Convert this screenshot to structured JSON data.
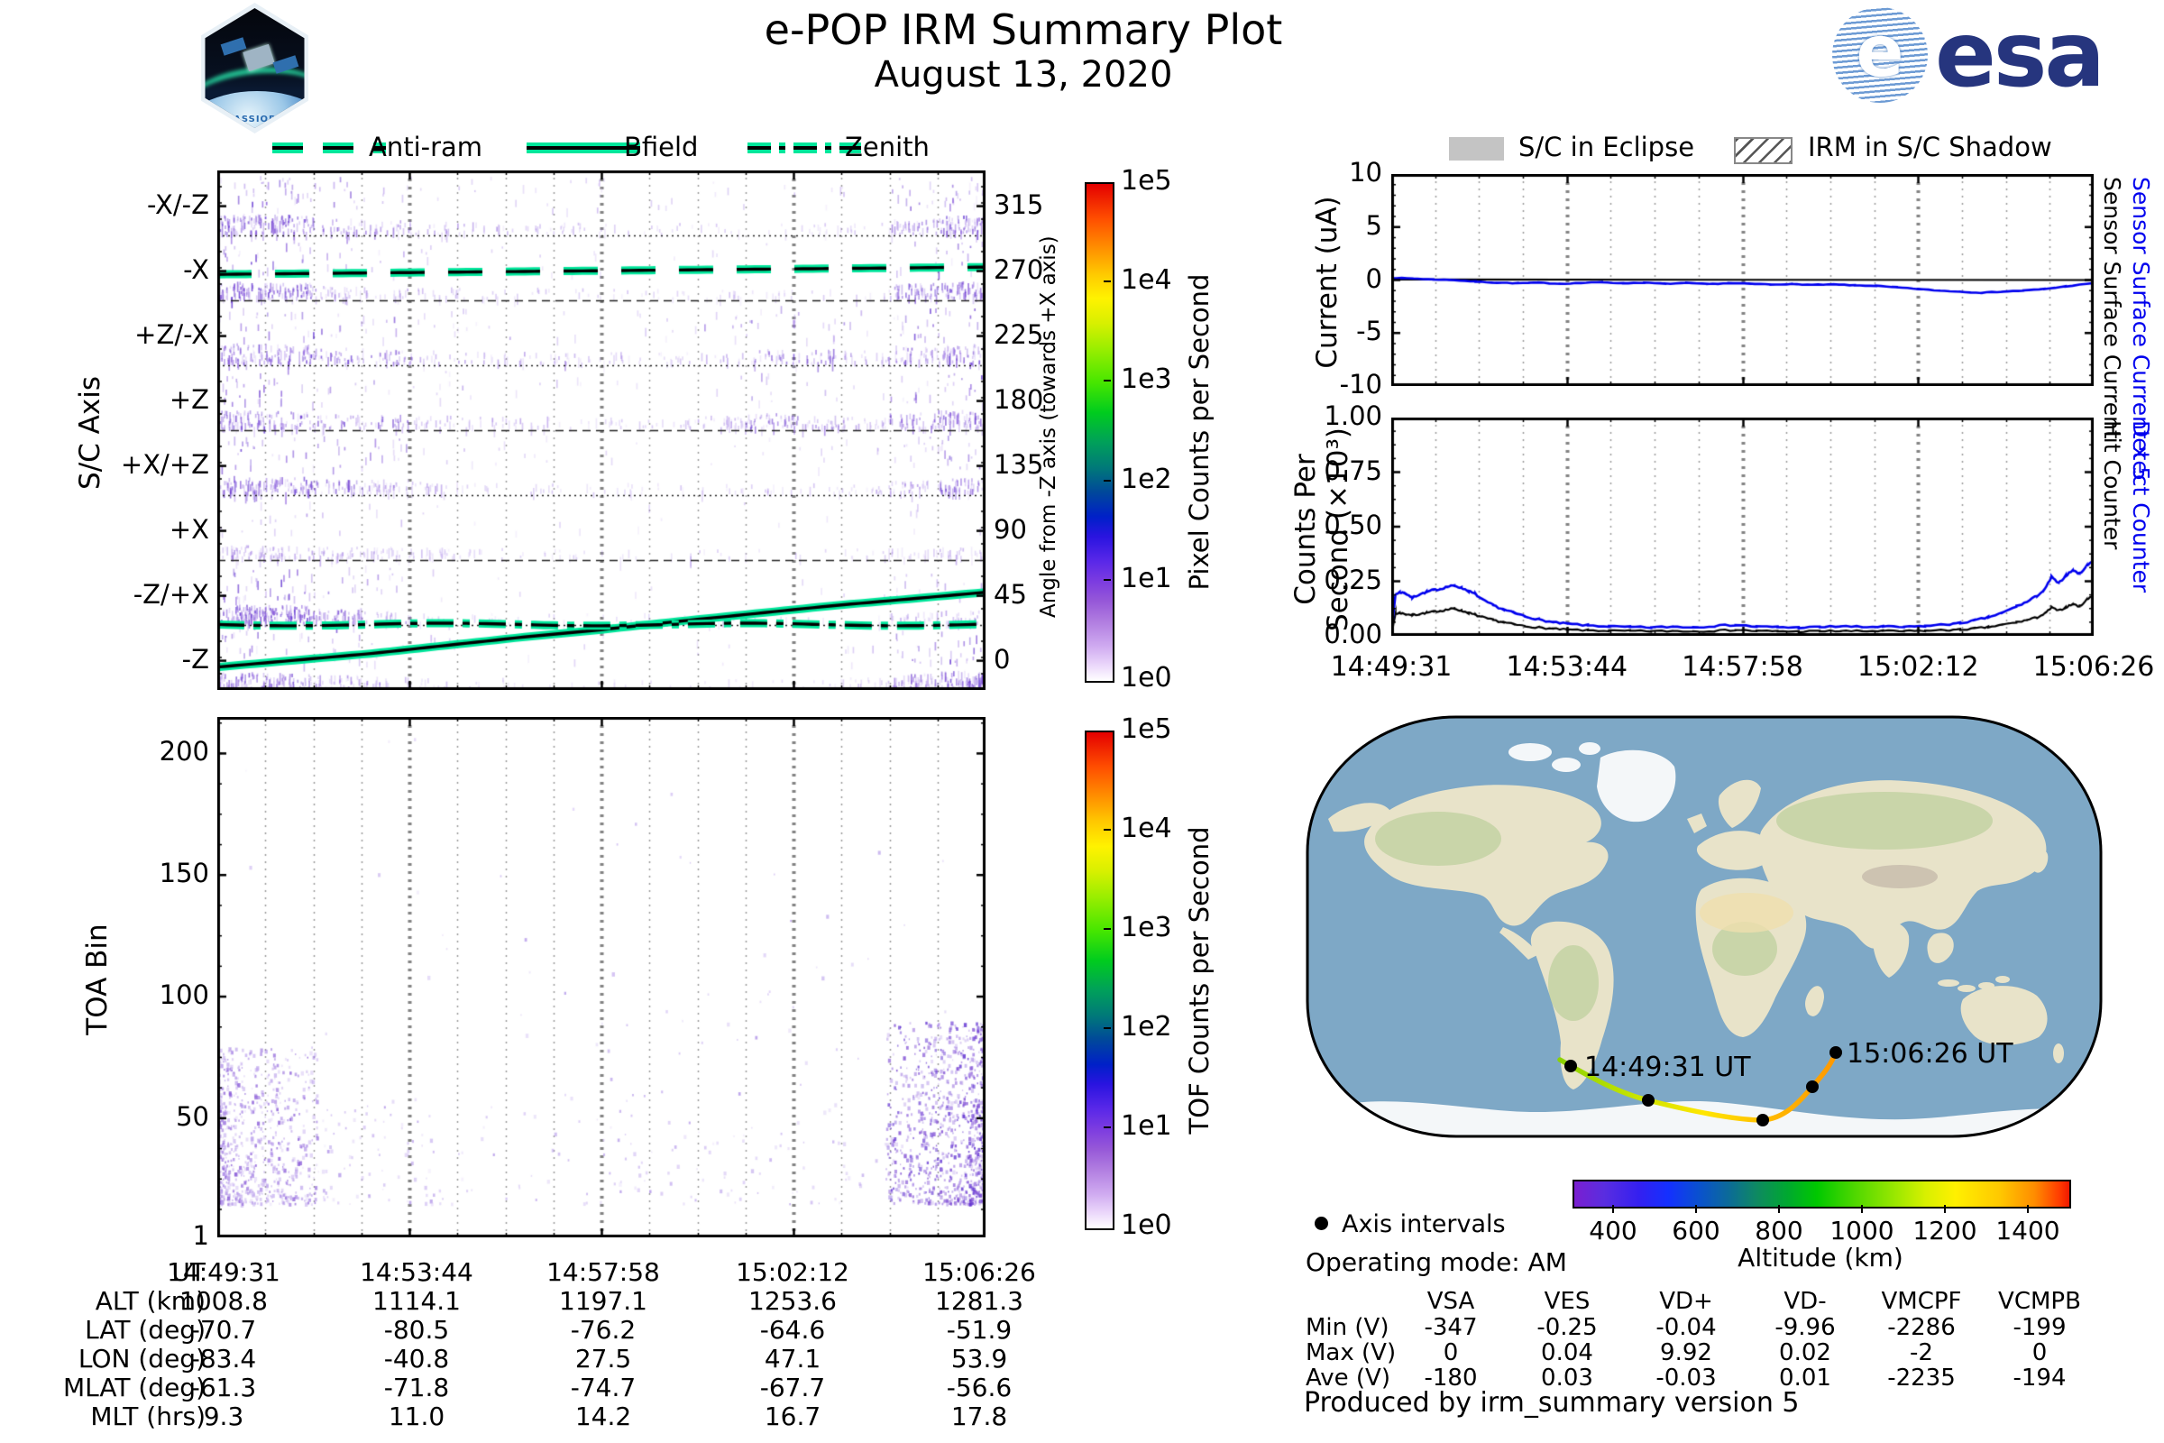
{
  "header": {
    "title": "e-POP IRM Summary Plot",
    "date": "August 13, 2020",
    "patch_label": "CASSIOPE",
    "esa_text": "esa"
  },
  "colors": {
    "highlight_green": "#00E69B",
    "series_blue": "#0000EE",
    "speckle_palette": [
      "#d3c0f4",
      "#b294ea",
      "#9a73e2",
      "#8152d8",
      "#6a39cf",
      "#5b2bd0"
    ],
    "grid_minor": "#9a9a9a",
    "grid_major": "#838383",
    "ocean": "#7ea8c6",
    "land": "#e8e3c9",
    "ice": "#f4f7f9",
    "eclipse_gray": "#c4c4c4"
  },
  "legend_left": {
    "items": [
      {
        "label": "Anti-ram",
        "style": "dashed"
      },
      {
        "label": "Bfield",
        "style": "solid"
      },
      {
        "label": "Zenith",
        "style": "dashdot"
      }
    ]
  },
  "legend_right": {
    "items": [
      {
        "label": "S/C in Eclipse",
        "swatch": "eclipse"
      },
      {
        "label": "IRM in S/C Shadow",
        "swatch": "hatch"
      }
    ]
  },
  "ephemeris": {
    "rows": [
      {
        "label": "UT",
        "values": [
          "14:49:31",
          "14:53:44",
          "14:57:58",
          "15:02:12",
          "15:06:26"
        ]
      },
      {
        "label": "ALT (km)",
        "values": [
          "1008.8",
          "1114.1",
          "1197.1",
          "1253.6",
          "1281.3"
        ]
      },
      {
        "label": "LAT (deg)",
        "values": [
          "-70.7",
          "-80.5",
          "-76.2",
          "-64.6",
          "-51.9"
        ]
      },
      {
        "label": "LON (deg)",
        "values": [
          "-83.4",
          "-40.8",
          "27.5",
          "47.1",
          "53.9"
        ]
      },
      {
        "label": "MLAT (deg)",
        "values": [
          "-61.3",
          "-71.8",
          "-74.7",
          "-67.7",
          "-56.6"
        ]
      },
      {
        "label": "MLT (hrs)",
        "values": [
          "9.3",
          "11.0",
          "14.2",
          "16.7",
          "17.8"
        ]
      }
    ]
  },
  "voltages": {
    "columns": [
      "VSA",
      "VES",
      "VD+",
      "VD-",
      "VMCPF",
      "VCMPB"
    ],
    "rows": [
      {
        "label": "Min (V)",
        "values": [
          "-347",
          "-0.25",
          "-0.04",
          "-9.96",
          "-2286",
          "-199"
        ]
      },
      {
        "label": "Max (V)",
        "values": [
          "0",
          "0.04",
          "9.92",
          "0.02",
          "-2",
          "0"
        ]
      },
      {
        "label": "Ave (V)",
        "values": [
          "-180",
          "0.03",
          "-0.03",
          "0.01",
          "-2235",
          "-194"
        ]
      }
    ]
  },
  "footer": {
    "text": "Produced by irm_summary version 5"
  },
  "chart_data": [
    {
      "id": "sc_axis_spectrogram",
      "type": "heatmap",
      "ylabel": "S/C Axis",
      "bands": [
        "-X/-Z",
        "-X",
        "+Z/-X",
        "+Z",
        "+X/+Z",
        "+X",
        "-Z/+X",
        "-Z"
      ],
      "band_activity": [
        [
          0.9,
          0.85,
          0.5,
          0.35,
          0.3,
          0.25,
          0.15,
          0.15,
          0.1,
          0.1,
          0.12,
          0.1,
          0.08,
          0.1,
          0.5,
          0.8
        ],
        [
          0.7,
          0.6,
          0.3,
          0.2,
          0.15,
          0.1,
          0.1,
          0.05,
          0.05,
          0.03,
          0.05,
          0.03,
          0.03,
          0.05,
          0.6,
          0.75
        ],
        [
          0.95,
          0.9,
          0.6,
          0.5,
          0.3,
          0.25,
          0.2,
          0.2,
          0.15,
          0.2,
          0.3,
          0.5,
          0.45,
          0.3,
          0.8,
          0.9
        ],
        [
          0.8,
          0.7,
          0.5,
          0.5,
          0.3,
          0.2,
          0.2,
          0.15,
          0.1,
          0.15,
          0.3,
          0.5,
          0.4,
          0.3,
          0.6,
          0.8
        ],
        [
          0.7,
          0.65,
          0.5,
          0.4,
          0.2,
          0.1,
          0.08,
          0.05,
          0.05,
          0.04,
          0.05,
          0.08,
          0.05,
          0.1,
          0.3,
          0.5
        ],
        [
          0.3,
          0.25,
          0.2,
          0.15,
          0.1,
          0.05,
          0.03,
          0.02,
          0.02,
          0.02,
          0.02,
          0.02,
          0.02,
          0.03,
          0.1,
          0.2
        ],
        [
          0.85,
          0.8,
          0.5,
          0.3,
          0.1,
          0.05,
          0.02,
          0.02,
          0.02,
          0.02,
          0.02,
          0.02,
          0.02,
          0.05,
          0.2,
          0.3
        ],
        [
          0.6,
          0.5,
          0.3,
          0.2,
          0.1,
          0.05,
          0.03,
          0.02,
          0.02,
          0.02,
          0.02,
          0.03,
          0.05,
          0.1,
          0.5,
          0.7
        ]
      ],
      "right_axis_label": "Angle from -Z axis (towards +X axis)",
      "right_ticks": [
        "315",
        "270",
        "225",
        "180",
        "135",
        "90",
        "45",
        "0"
      ],
      "overlays": [
        {
          "name": "Anti-ram",
          "style": "dashed",
          "points": [
            [
              0,
              0.2
            ],
            [
              1,
              0.186
            ]
          ]
        },
        {
          "name": "Bfield",
          "style": "solid",
          "points": [
            [
              0,
              0.956
            ],
            [
              0.2,
              0.93
            ],
            [
              0.4,
              0.898
            ],
            [
              0.5,
              0.884
            ],
            [
              0.6,
              0.868
            ],
            [
              0.8,
              0.838
            ],
            [
              1,
              0.812
            ]
          ]
        },
        {
          "name": "Zenith",
          "style": "dashdot",
          "points": [
            [
              0,
              0.874
            ],
            [
              1,
              0.874
            ]
          ]
        }
      ],
      "colorbar": {
        "label": "Pixel Counts per Second",
        "ticks": [
          "1e5",
          "1e4",
          "1e3",
          "1e2",
          "1e1",
          "1e0"
        ]
      },
      "x_range": [
        "14:49:31",
        "15:06:26"
      ]
    },
    {
      "id": "toa_bin",
      "type": "scatter",
      "ylabel": "TOA Bin",
      "ylim": [
        1,
        215
      ],
      "yticks": [
        "200",
        "150",
        "100",
        "50",
        "1"
      ],
      "clusters": [
        {
          "x": [
            0.0,
            0.13
          ],
          "y": [
            15,
            80
          ],
          "n": 650,
          "bias": "left",
          "pal": 1
        },
        {
          "x": [
            0.0,
            0.28
          ],
          "y": [
            15,
            60
          ],
          "n": 160,
          "bias": "left",
          "pal": 0
        },
        {
          "x": [
            0.13,
            0.87
          ],
          "y": [
            15,
            55
          ],
          "n": 150,
          "bias": "none",
          "pal": 0
        },
        {
          "x": [
            0.45,
            0.9
          ],
          "y": [
            55,
            130
          ],
          "n": 35,
          "bias": "none",
          "pal": 0
        },
        {
          "x": [
            0.87,
            1.0
          ],
          "y": [
            15,
            90
          ],
          "n": 1000,
          "bias": "right",
          "pal": 2
        },
        {
          "x": [
            0.03,
            0.98
          ],
          "y": [
            80,
            210
          ],
          "n": 30,
          "bias": "none",
          "pal": 0
        }
      ],
      "colorbar": {
        "label": "TOF Counts per Second",
        "ticks": [
          "1e5",
          "1e4",
          "1e3",
          "1e2",
          "1e1",
          "1e0"
        ]
      }
    },
    {
      "id": "sensor_current",
      "type": "line",
      "ylabel": "Current (uA)",
      "ylim": [
        -10,
        10
      ],
      "yticks": [
        "10",
        "5",
        "0",
        "-5",
        "-10"
      ],
      "series": [
        {
          "name": "Sensor Surface Current x 5",
          "color": "#0000EE",
          "x": [
            0,
            0.03,
            0.06,
            0.09,
            0.12,
            0.15,
            0.18,
            0.21,
            0.24,
            0.27,
            0.3,
            0.33,
            0.36,
            0.39,
            0.42,
            0.45,
            0.48,
            0.51,
            0.54,
            0.57,
            0.6,
            0.63,
            0.66,
            0.69,
            0.72,
            0.75,
            0.78,
            0.81,
            0.84,
            0.87,
            0.9,
            0.93,
            0.96,
            1.0
          ],
          "y": [
            0.2,
            0.15,
            0.05,
            0,
            -0.15,
            -0.25,
            -0.3,
            -0.25,
            -0.35,
            -0.28,
            -0.2,
            -0.3,
            -0.25,
            -0.35,
            -0.28,
            -0.38,
            -0.3,
            -0.35,
            -0.42,
            -0.38,
            -0.45,
            -0.42,
            -0.5,
            -0.55,
            -0.7,
            -0.85,
            -1.0,
            -1.1,
            -1.2,
            -1.1,
            -1.0,
            -0.85,
            -0.6,
            -0.3
          ]
        },
        {
          "name": "Sensor Surface Current",
          "color": "#000000",
          "x": [
            0,
            0.5,
            1.0
          ],
          "y": [
            0.05,
            0.02,
            0.0
          ]
        }
      ]
    },
    {
      "id": "counters",
      "type": "line",
      "ylabel_line1": "Counts Per",
      "ylabel_line2": "Second (×10³)",
      "ylim": [
        0,
        1
      ],
      "yticks": [
        "1.00",
        "0.75",
        "0.50",
        "0.25",
        "0.00"
      ],
      "xticks": [
        "14:49:31",
        "14:53:44",
        "14:57:58",
        "15:02:12",
        "15:06:26"
      ],
      "series": [
        {
          "name": "Detect Counter",
          "color": "#0000EE",
          "x": [
            0,
            0.006,
            0.012,
            0.02,
            0.03,
            0.04,
            0.05,
            0.06,
            0.07,
            0.08,
            0.09,
            0.1,
            0.11,
            0.12,
            0.13,
            0.145,
            0.16,
            0.175,
            0.19,
            0.21,
            0.23,
            0.25,
            0.28,
            0.31,
            0.34,
            0.37,
            0.4,
            0.43,
            0.46,
            0.49,
            0.52,
            0.55,
            0.58,
            0.61,
            0.64,
            0.67,
            0.7,
            0.73,
            0.76,
            0.79,
            0.81,
            0.83,
            0.85,
            0.87,
            0.89,
            0.905,
            0.92,
            0.93,
            0.94,
            0.95,
            0.96,
            0.97,
            0.98,
            0.99,
            1.0
          ],
          "y": [
            0.0,
            0.19,
            0.2,
            0.195,
            0.175,
            0.19,
            0.2,
            0.21,
            0.215,
            0.225,
            0.23,
            0.22,
            0.205,
            0.19,
            0.165,
            0.14,
            0.12,
            0.105,
            0.09,
            0.075,
            0.062,
            0.055,
            0.048,
            0.043,
            0.04,
            0.038,
            0.042,
            0.04,
            0.045,
            0.05,
            0.042,
            0.04,
            0.038,
            0.04,
            0.044,
            0.04,
            0.042,
            0.04,
            0.045,
            0.052,
            0.058,
            0.07,
            0.085,
            0.105,
            0.135,
            0.155,
            0.185,
            0.21,
            0.27,
            0.24,
            0.275,
            0.3,
            0.285,
            0.32,
            0.35
          ]
        },
        {
          "name": "Hit Counter",
          "color": "#000000",
          "x": [
            0,
            0.006,
            0.012,
            0.02,
            0.03,
            0.04,
            0.05,
            0.06,
            0.07,
            0.08,
            0.09,
            0.1,
            0.11,
            0.12,
            0.13,
            0.145,
            0.16,
            0.175,
            0.19,
            0.21,
            0.23,
            0.25,
            0.28,
            0.31,
            0.34,
            0.37,
            0.4,
            0.43,
            0.46,
            0.49,
            0.52,
            0.55,
            0.58,
            0.61,
            0.64,
            0.67,
            0.7,
            0.73,
            0.76,
            0.79,
            0.81,
            0.83,
            0.85,
            0.87,
            0.89,
            0.905,
            0.92,
            0.93,
            0.94,
            0.95,
            0.96,
            0.97,
            0.98,
            0.99,
            1.0
          ],
          "y": [
            0.0,
            0.1,
            0.105,
            0.1,
            0.095,
            0.1,
            0.105,
            0.11,
            0.115,
            0.12,
            0.125,
            0.115,
            0.105,
            0.095,
            0.085,
            0.072,
            0.062,
            0.052,
            0.045,
            0.038,
            0.032,
            0.028,
            0.025,
            0.023,
            0.022,
            0.021,
            0.022,
            0.021,
            0.023,
            0.027,
            0.022,
            0.021,
            0.02,
            0.021,
            0.022,
            0.021,
            0.022,
            0.021,
            0.023,
            0.026,
            0.028,
            0.033,
            0.04,
            0.05,
            0.062,
            0.072,
            0.085,
            0.1,
            0.13,
            0.115,
            0.13,
            0.145,
            0.135,
            0.165,
            0.19
          ]
        }
      ]
    },
    {
      "id": "orbit_map",
      "type": "map",
      "track": {
        "start_label": "14:49:31 UT",
        "end_label": "15:06:26 UT",
        "point_times": [
          "14:49:31",
          "14:53:44",
          "14:57:58",
          "15:02:12",
          "15:06:26"
        ],
        "point_altitudes_km": [
          1008.8,
          1114.1,
          1197.1,
          1253.6,
          1281.3
        ]
      },
      "legend": "Axis intervals",
      "operating_mode": "Operating mode: AM",
      "colorbar": {
        "label": "Altitude (km)",
        "ticks": [
          "400",
          "600",
          "800",
          "1000",
          "1200",
          "1400"
        ]
      }
    }
  ]
}
